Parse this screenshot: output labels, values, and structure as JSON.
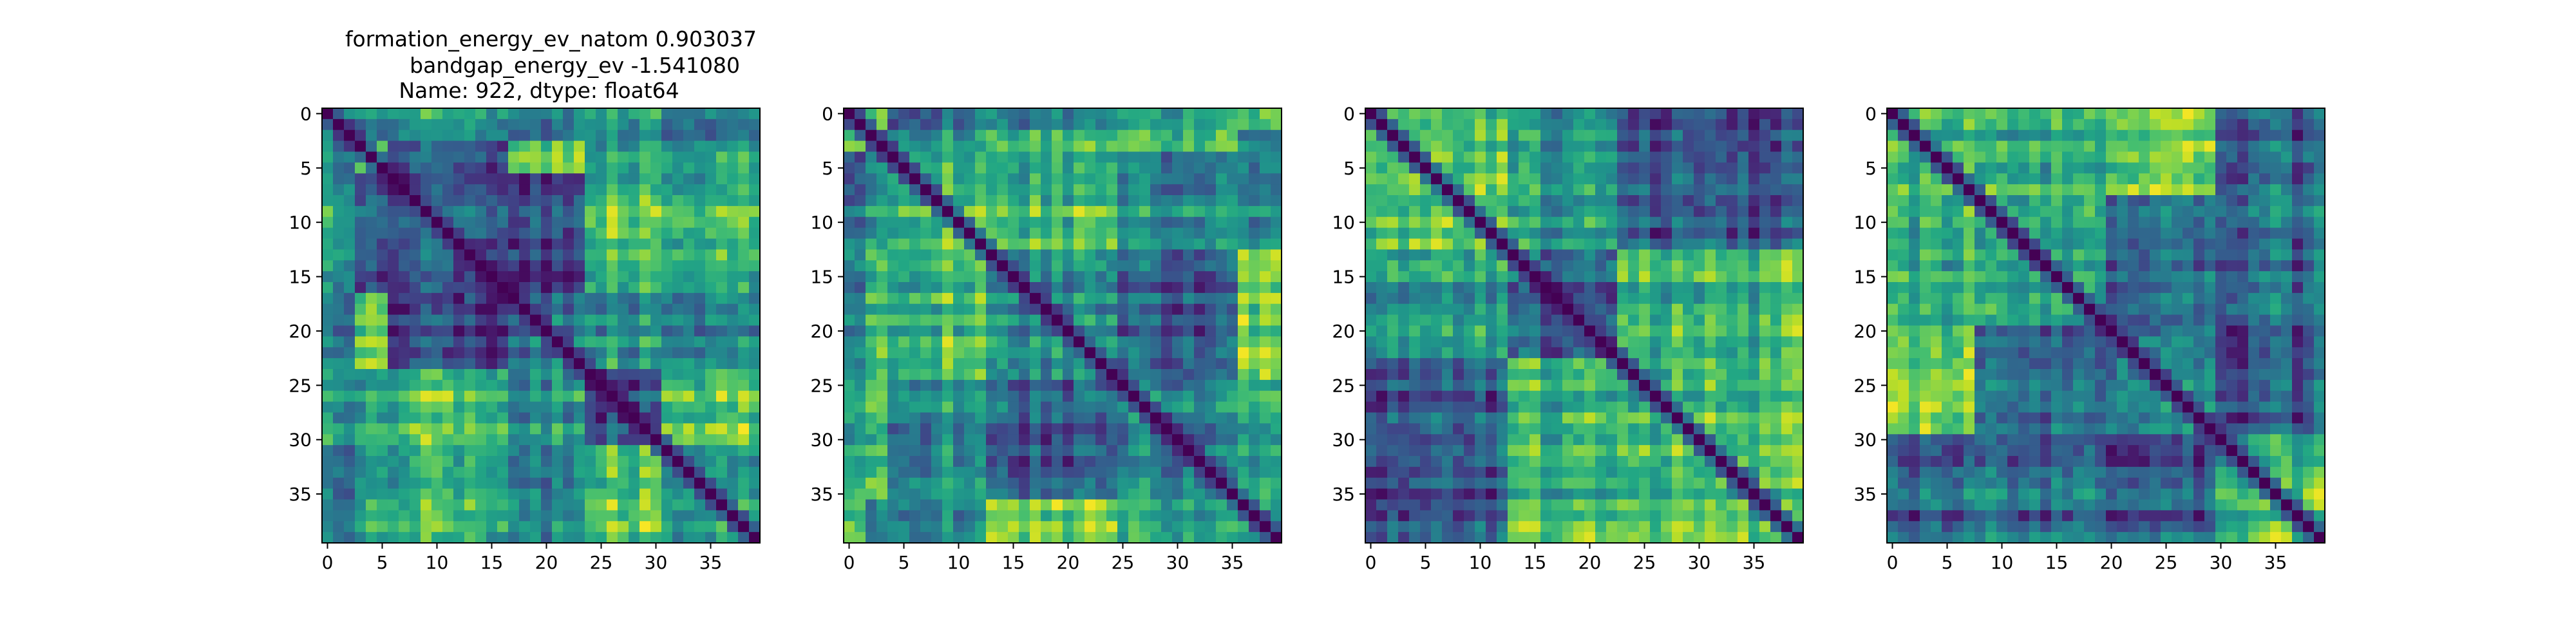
{
  "figure": {
    "title_lines": [
      "formation_energy_ev_natom    0.903037",
      "bandgap_energy_ev           -1.541080",
      "Name: 922, dtype: float64"
    ]
  },
  "chart_data": [
    {
      "type": "heatmap",
      "title": "",
      "xlabel": "",
      "ylabel": "",
      "size": 40,
      "xticks": [
        0,
        5,
        10,
        15,
        20,
        25,
        30,
        35
      ],
      "yticks": [
        0,
        5,
        10,
        15,
        20,
        25,
        30,
        35
      ],
      "xlim": [
        -0.5,
        39.5
      ],
      "ylim": [
        39.5,
        -0.5
      ],
      "colormap": "viridis",
      "diagonal_value": 0,
      "block_boundaries": [
        3,
        6,
        17,
        24,
        31
      ],
      "grid": false,
      "legend": "none"
    },
    {
      "type": "heatmap",
      "title": "",
      "xlabel": "",
      "ylabel": "",
      "size": 40,
      "xticks": [
        0,
        5,
        10,
        15,
        20,
        25,
        30,
        35
      ],
      "yticks": [
        0,
        5,
        10,
        15,
        20,
        25,
        30,
        35
      ],
      "xlim": [
        -0.5,
        39.5
      ],
      "ylim": [
        39.5,
        -0.5
      ],
      "colormap": "viridis",
      "diagonal_value": 0,
      "block_boundaries": [
        2,
        4,
        13,
        25,
        36
      ],
      "grid": false,
      "legend": "none"
    },
    {
      "type": "heatmap",
      "title": "",
      "xlabel": "",
      "ylabel": "",
      "size": 40,
      "xticks": [
        0,
        5,
        10,
        15,
        20,
        25,
        30,
        35
      ],
      "yticks": [
        0,
        5,
        10,
        15,
        20,
        25,
        30,
        35
      ],
      "xlim": [
        -0.5,
        39.5
      ],
      "ylim": [
        39.5,
        -0.5
      ],
      "colormap": "viridis",
      "diagonal_value": 0,
      "block_boundaries": [
        13,
        23,
        36
      ],
      "grid": false,
      "legend": "none"
    },
    {
      "type": "heatmap",
      "title": "",
      "xlabel": "",
      "ylabel": "",
      "size": 40,
      "xticks": [
        0,
        5,
        10,
        15,
        20,
        25,
        30,
        35
      ],
      "yticks": [
        0,
        5,
        10,
        15,
        20,
        25,
        30,
        35
      ],
      "xlim": [
        -0.5,
        39.5
      ],
      "ylim": [
        39.5,
        -0.5
      ],
      "colormap": "viridis",
      "diagonal_value": 0,
      "block_boundaries": [
        8,
        20,
        30
      ],
      "grid": false,
      "legend": "none"
    }
  ]
}
